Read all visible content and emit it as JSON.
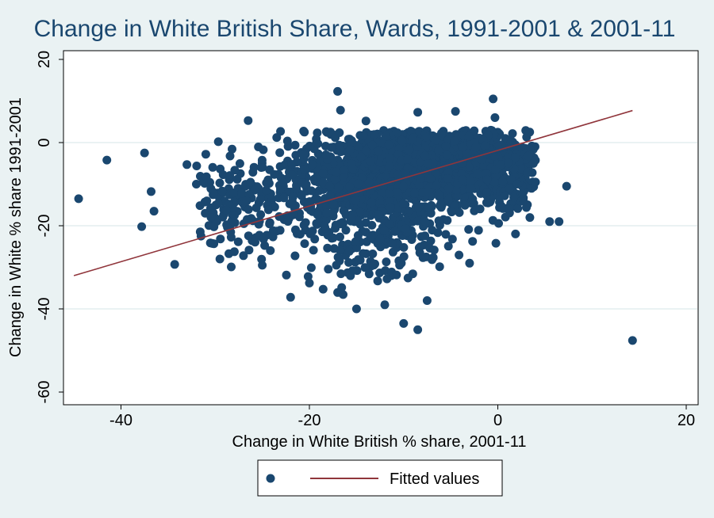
{
  "chart_data": {
    "type": "scatter",
    "title": "Change in White British Share, Wards, 1991-2001 & 2001-11",
    "xlabel": "Change in White British % share, 2001-11",
    "ylabel": "Change in White % share 1991-2001",
    "xlim": [
      -46,
      21
    ],
    "ylim": [
      -63,
      22
    ],
    "x_ticks": [
      -40,
      -20,
      0,
      20
    ],
    "y_ticks": [
      20,
      0,
      -20,
      -40,
      -60
    ],
    "grid": true,
    "legend_position": "bottom",
    "colors": {
      "background": "#eaf2f3",
      "plot_background": "#ffffff",
      "points": "#1a476f",
      "fitted_line": "#90353b",
      "grid": "#dde9ec",
      "title": "#1a476f"
    },
    "series": [
      {
        "name": "",
        "kind": "scatter",
        "cluster_note": "dense cloud of several thousand ward points centred near (-10, -8); outliers listed below",
        "outliers": [
          [
            -44.5,
            -13.5
          ],
          [
            -41.5,
            -4.2
          ],
          [
            -37.5,
            -2.5
          ],
          [
            -37.8,
            -20.2
          ],
          [
            -36.8,
            -11.8
          ],
          [
            -36.5,
            -16.5
          ],
          [
            -34.3,
            -29.3
          ],
          [
            -33.0,
            -5.3
          ],
          [
            -31,
            -2.8
          ],
          [
            -31.5,
            -22.5
          ],
          [
            -29.5,
            -28
          ],
          [
            -26.5,
            5.3
          ],
          [
            -17,
            12.3
          ],
          [
            -16.7,
            7.8
          ],
          [
            -14,
            5.2
          ],
          [
            -8.5,
            7.3
          ],
          [
            -4.5,
            7.5
          ],
          [
            -0.5,
            10.5
          ],
          [
            -0.3,
            6
          ],
          [
            -10,
            -43.5
          ],
          [
            -8.5,
            -45
          ],
          [
            -15,
            -40
          ],
          [
            -22,
            -37.2
          ],
          [
            -12,
            -39
          ],
          [
            -7.5,
            -38
          ],
          [
            -0.2,
            -24.2
          ],
          [
            5.5,
            -19
          ],
          [
            6.5,
            -19
          ],
          [
            7.3,
            -10.5
          ],
          [
            14.3,
            -47.6
          ],
          [
            -27,
            -27.2
          ],
          [
            -25,
            -29.5
          ],
          [
            -20,
            -33.8
          ],
          [
            -3,
            -29
          ],
          [
            4,
            -9.5
          ]
        ]
      },
      {
        "name": "Fitted values",
        "kind": "line",
        "x": [
          -45,
          14.3
        ],
        "y": [
          -32,
          7.7
        ]
      }
    ],
    "legend": [
      {
        "label": "",
        "marker": "circle"
      },
      {
        "label": "Fitted values",
        "marker": "line"
      }
    ]
  }
}
